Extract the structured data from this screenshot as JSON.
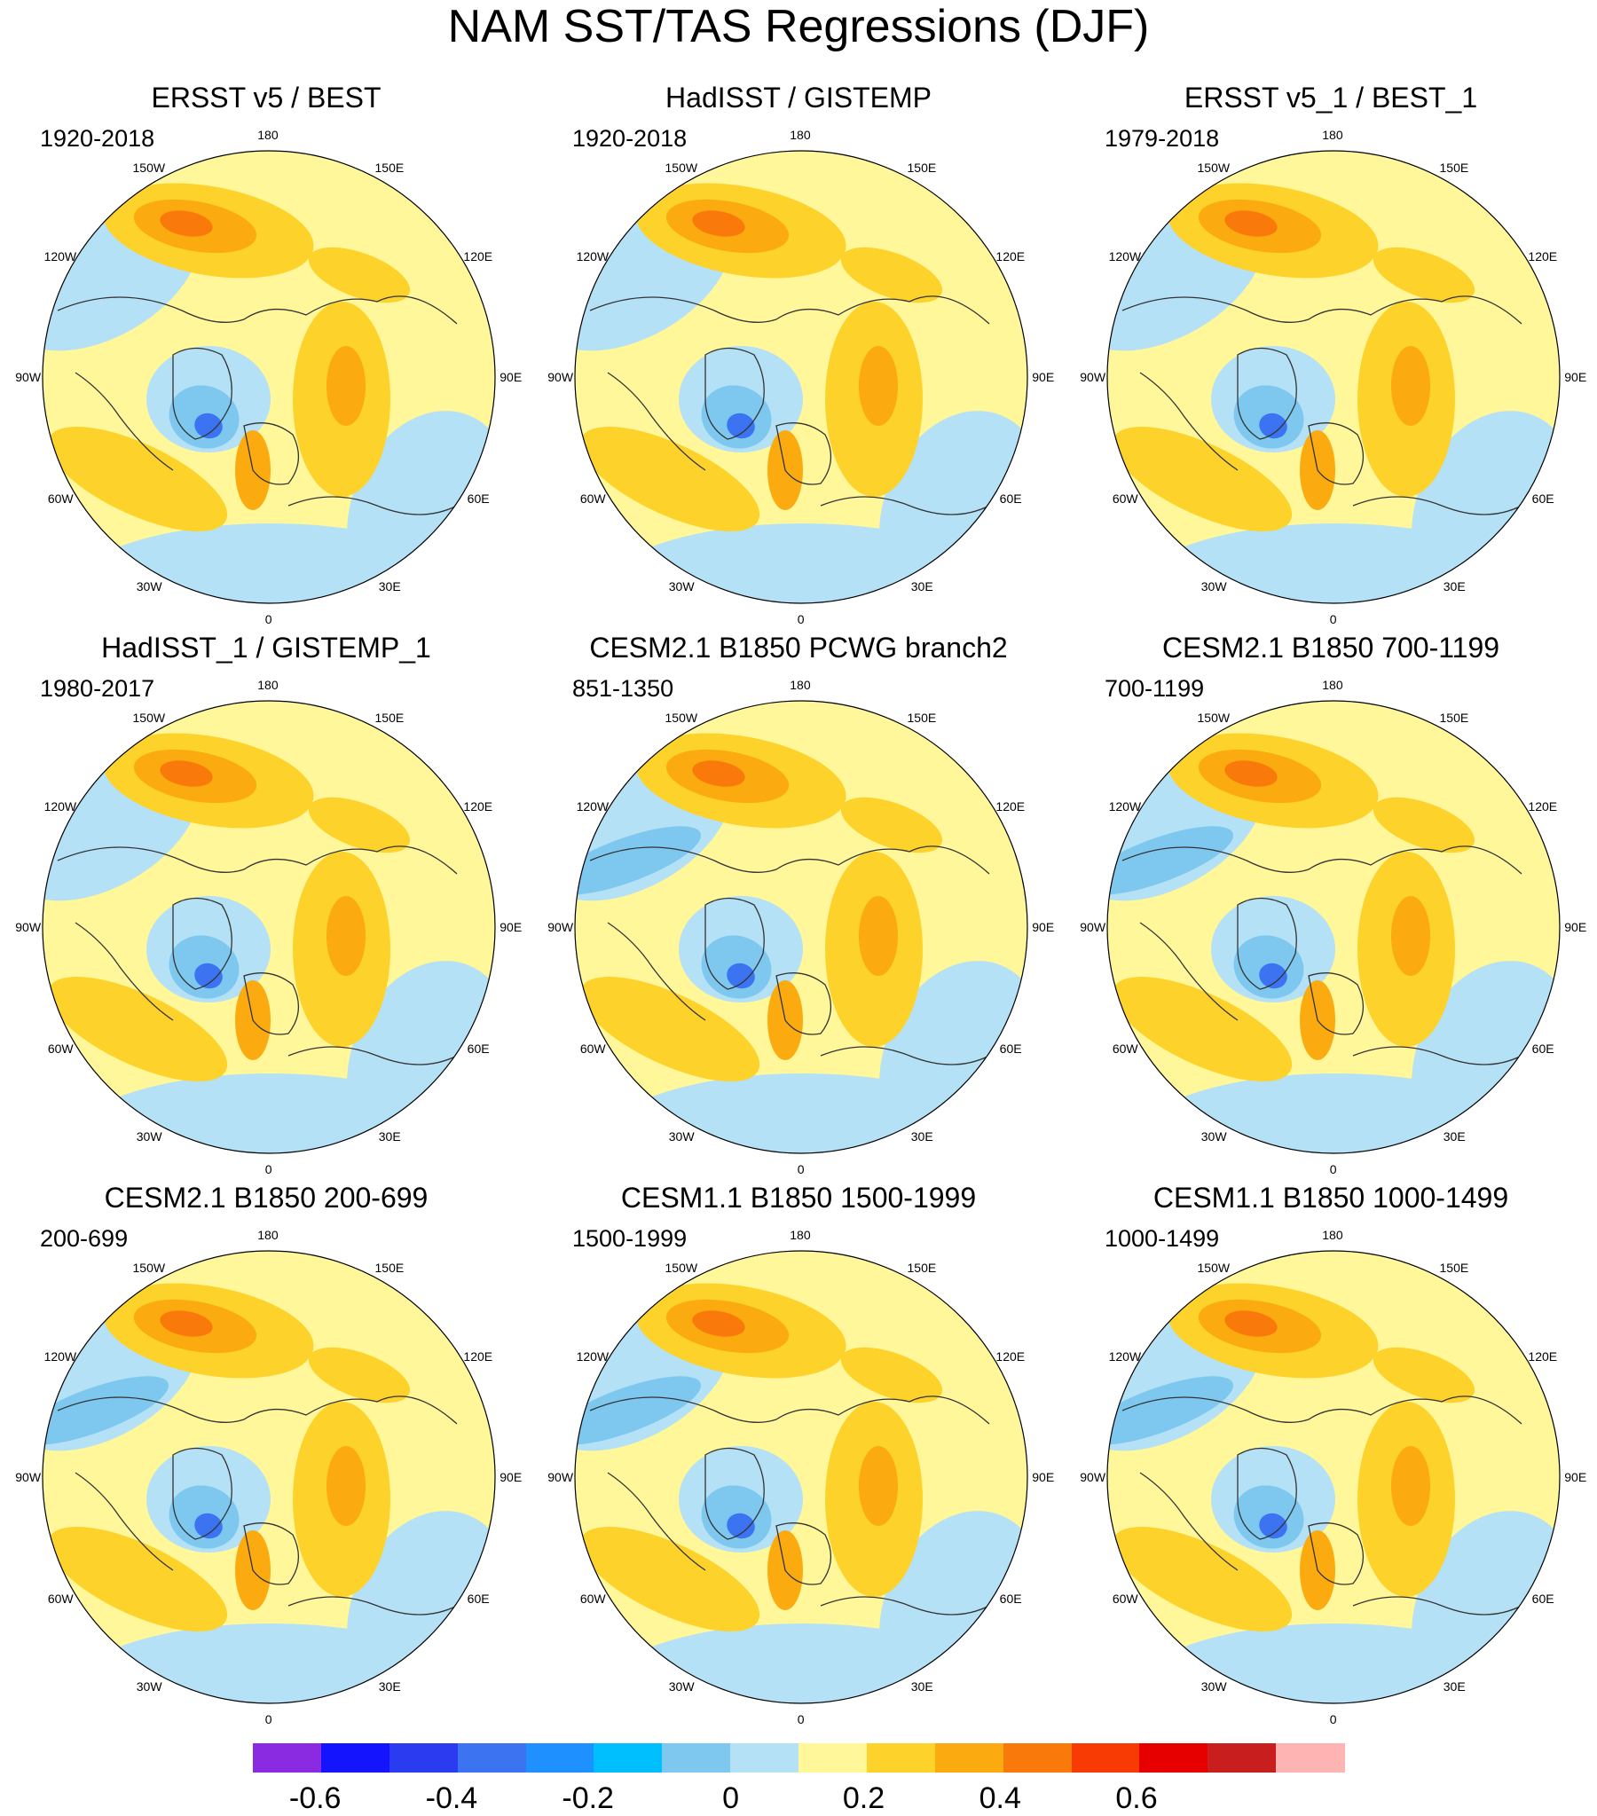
{
  "title": "NAM SST/TAS Regressions (DJF)",
  "longitude_labels": [
    "180",
    "150E",
    "120E",
    "90E",
    "60E",
    "30E",
    "0",
    "30W",
    "60W",
    "90W",
    "120W",
    "150W"
  ],
  "panels": [
    {
      "title": "ERSST v5 / BEST",
      "period": "1920-2018"
    },
    {
      "title": "HadISST / GISTEMP",
      "period": "1920-2018"
    },
    {
      "title": "ERSST v5_1 / BEST_1",
      "period": "1979-2018"
    },
    {
      "title": "HadISST_1 / GISTEMP_1",
      "period": "1980-2017"
    },
    {
      "title": "CESM2.1 B1850 PCWG branch2",
      "period": "851-1350"
    },
    {
      "title": "CESM2.1 B1850 700-1199",
      "period": "700-1199"
    },
    {
      "title": "CESM2.1 B1850 200-699",
      "period": "200-699"
    },
    {
      "title": "CESM1.1 B1850 1500-1999",
      "period": "1500-1999"
    },
    {
      "title": "CESM1.1 B1850 1000-1499",
      "period": "1000-1499"
    }
  ],
  "colorbar": {
    "colors": [
      "#8a2be2",
      "#1414ff",
      "#2b3cf0",
      "#3c73f0",
      "#1e90ff",
      "#00bfff",
      "#7ec8f0",
      "#b4e1f5",
      "#fff799",
      "#fdd22b",
      "#fbab0f",
      "#f97a0a",
      "#f83a05",
      "#e60000",
      "#c81e1e",
      "#ffb4b4"
    ],
    "labels": [
      "-0.6",
      "-0.4",
      "-0.2",
      "0",
      "0.2",
      "0.4",
      "0.6"
    ],
    "label_boundaries": [
      1,
      3,
      5,
      7,
      9,
      11,
      13
    ]
  },
  "map_colors": {
    "neutral": "#fff799",
    "cool1": "#b4e1f5",
    "cool2": "#7ec8f0",
    "cool3": "#3c73f0",
    "warm1": "#fdd22b",
    "warm2": "#fbab0f",
    "warm3": "#f97a0a",
    "land_outline": "#333333",
    "map_border": "#000000"
  }
}
